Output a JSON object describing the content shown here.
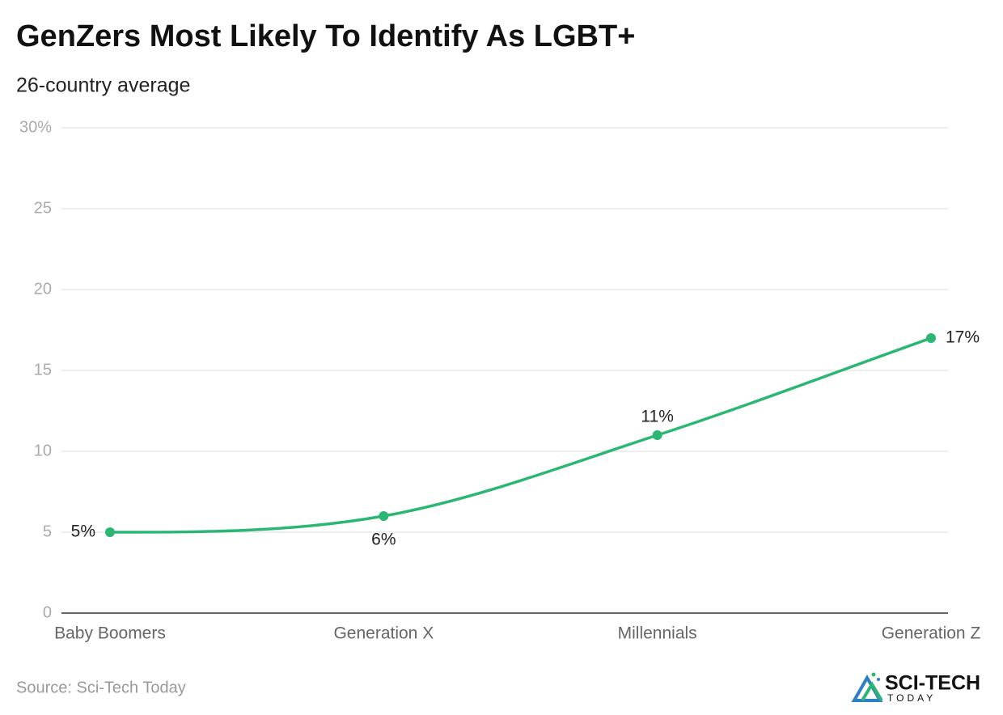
{
  "chart_data": {
    "type": "line",
    "title": "GenZers Most Likely To Identify As LGBT+",
    "subtitle": "26-country average",
    "categories": [
      "Baby Boomers",
      "Generation X",
      "Millennials",
      "Generation Z"
    ],
    "values": [
      5,
      6,
      11,
      17
    ],
    "value_labels": [
      "5%",
      "6%",
      "11%",
      "17%"
    ],
    "color": "#2bb673",
    "ylim": [
      0,
      30
    ],
    "yticks": [
      0,
      5,
      10,
      15,
      20,
      25,
      {
        "value": 30,
        "label": "30%"
      }
    ],
    "grid": true,
    "source": "Source: Sci-Tech Today",
    "logo": {
      "name": "SCI-TECH",
      "tagline": "TODAY"
    }
  }
}
